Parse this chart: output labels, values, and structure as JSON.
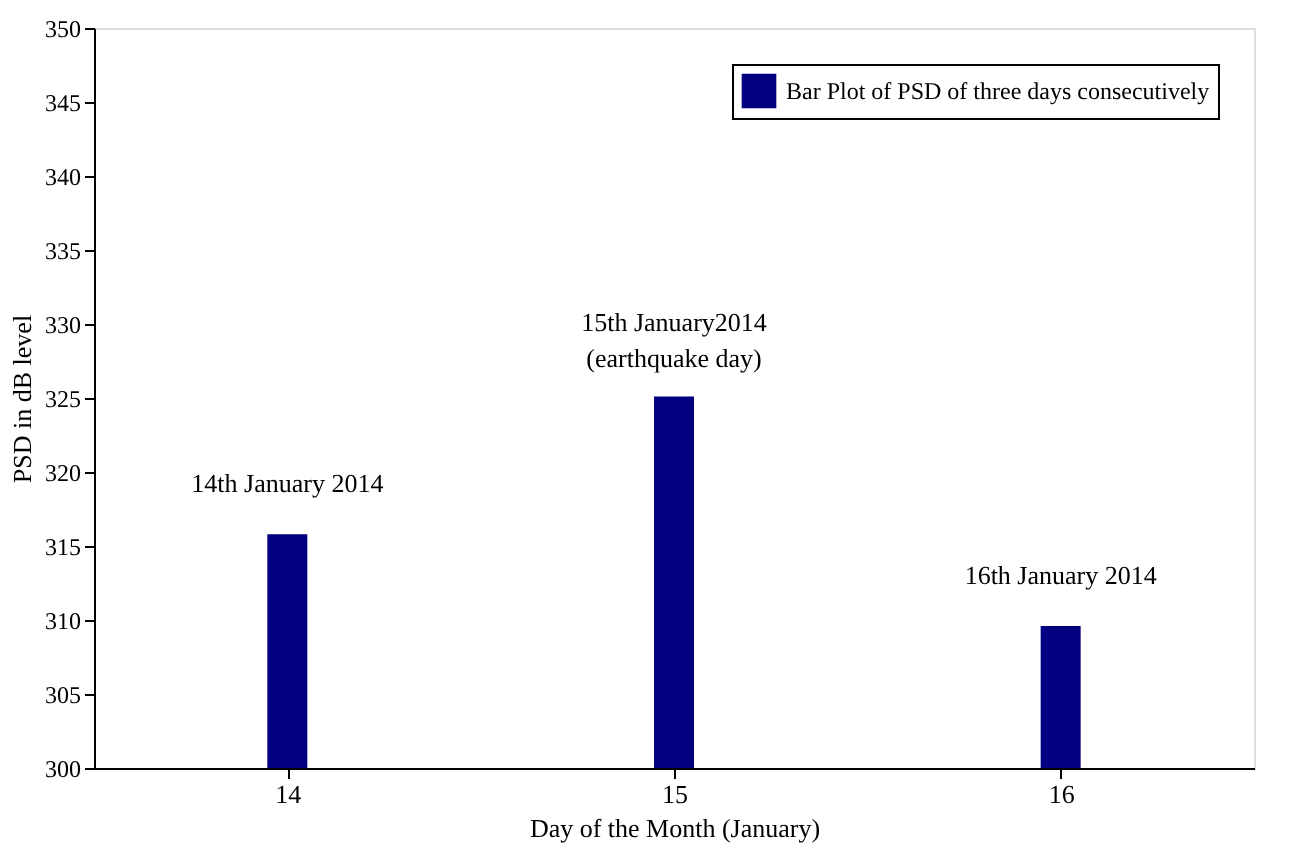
{
  "chart_data": {
    "type": "bar",
    "xlabel": "Day of the Month (January)",
    "ylabel": "PSD in dB level",
    "x": [
      14,
      15,
      16
    ],
    "xlim": [
      13.5,
      16.5
    ],
    "xticks": [
      14,
      15,
      16
    ],
    "ylim": [
      300,
      350
    ],
    "yticks": [
      300,
      305,
      310,
      315,
      320,
      325,
      330,
      335,
      340,
      345,
      350
    ],
    "series": [
      {
        "name": "Bar Plot of PSD of three days consecutively",
        "color": "#000080",
        "values": [
          315.8,
          325.1,
          309.6
        ]
      }
    ],
    "annotations": [
      "14th January 2014",
      "15th January2014\n(earthquake day)",
      "16th January 2014"
    ],
    "legend": "top right",
    "grid": false
  }
}
